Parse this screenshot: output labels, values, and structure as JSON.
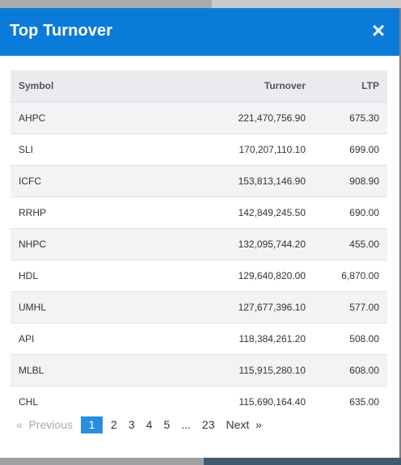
{
  "modal": {
    "title": "Top Turnover",
    "close_icon": "×"
  },
  "table": {
    "headers": {
      "symbol": "Symbol",
      "turnover": "Turnover",
      "ltp": "LTP"
    },
    "rows": [
      {
        "symbol": "AHPC",
        "turnover": "221,470,756.90",
        "ltp": "675.30"
      },
      {
        "symbol": "SLI",
        "turnover": "170,207,110.10",
        "ltp": "699.00"
      },
      {
        "symbol": "ICFC",
        "turnover": "153,813,146.90",
        "ltp": "908.90"
      },
      {
        "symbol": "RRHP",
        "turnover": "142,849,245.50",
        "ltp": "690.00"
      },
      {
        "symbol": "NHPC",
        "turnover": "132,095,744.20",
        "ltp": "455.00"
      },
      {
        "symbol": "HDL",
        "turnover": "129,640,820.00",
        "ltp": "6,870.00"
      },
      {
        "symbol": "UMHL",
        "turnover": "127,677,396.10",
        "ltp": "577.00"
      },
      {
        "symbol": "API",
        "turnover": "118,384,261.20",
        "ltp": "508.00"
      },
      {
        "symbol": "MLBL",
        "turnover": "115,915,280.10",
        "ltp": "608.00"
      },
      {
        "symbol": "CHL",
        "turnover": "115,690,164.40",
        "ltp": "635.00"
      }
    ]
  },
  "pagination": {
    "prev_arrow": "«",
    "prev_label": "Previous",
    "pages": [
      "1",
      "2",
      "3",
      "4",
      "5"
    ],
    "active_page": "1",
    "ellipsis": "...",
    "last_page": "23",
    "next_label": "Next",
    "next_arrow": "»"
  }
}
